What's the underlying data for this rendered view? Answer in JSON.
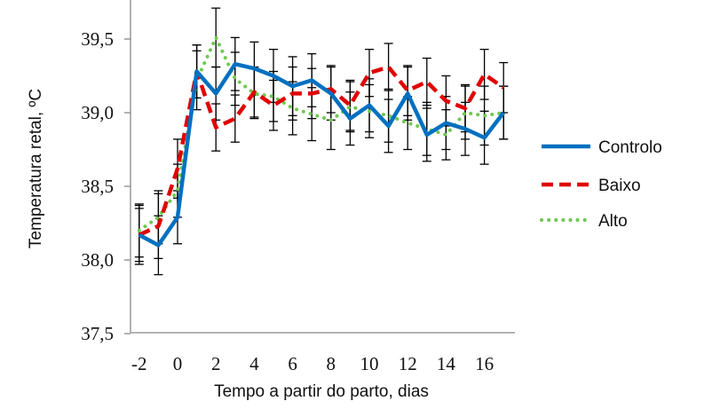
{
  "chart_data": {
    "type": "line",
    "title": "",
    "xlabel": "Tempo a partir do parto, dias",
    "ylabel": "Temperatura retal, ºC",
    "xlim": [
      -2.7,
      17.6
    ],
    "ylim": [
      37.5,
      39.75
    ],
    "x_ticks": [
      -2,
      0,
      2,
      4,
      6,
      8,
      10,
      12,
      14,
      16
    ],
    "y_ticks": [
      37.5,
      38.0,
      38.5,
      39.0,
      39.5
    ],
    "y_tick_labels": [
      "37,5",
      "38,0",
      "38,5",
      "39,0",
      "39,5"
    ],
    "grid": false,
    "legend": "right",
    "x": [
      -2,
      -1,
      0,
      1,
      2,
      3,
      4,
      5,
      6,
      7,
      8,
      9,
      10,
      11,
      12,
      13,
      14,
      15,
      16,
      17
    ],
    "series": [
      {
        "name": "Controlo",
        "color": "#0070C0",
        "style": "solid",
        "values": [
          38.17,
          38.1,
          38.29,
          39.28,
          39.13,
          39.33,
          39.3,
          39.25,
          39.18,
          39.22,
          39.13,
          38.96,
          39.05,
          38.91,
          39.13,
          38.85,
          38.93,
          38.89,
          38.83,
          39.0
        ],
        "error": [
          0.18,
          0.2,
          0.18,
          0.18,
          0.18,
          0.18,
          0.18,
          0.18,
          0.2,
          0.18,
          0.18,
          0.18,
          0.18,
          0.18,
          0.18,
          0.18,
          0.18,
          0.18,
          0.18,
          0.18
        ]
      },
      {
        "name": "Baixo",
        "color": "#E00000",
        "style": "dashed",
        "values": [
          38.17,
          38.23,
          38.62,
          39.28,
          38.9,
          38.96,
          39.14,
          39.05,
          39.13,
          39.13,
          39.16,
          39.05,
          39.27,
          39.31,
          39.15,
          39.21,
          39.08,
          39.03,
          39.26,
          39.17
        ],
        "error": [
          0.2,
          0.22,
          0.2,
          0.18,
          0.16,
          0.16,
          0.17,
          0.17,
          0.18,
          0.17,
          0.16,
          0.17,
          0.16,
          0.16,
          0.17,
          0.16,
          0.17,
          0.16,
          0.17,
          0.17
        ]
      },
      {
        "name": "Alto",
        "color": "#70C850",
        "style": "dotted",
        "values": [
          38.2,
          38.29,
          38.47,
          39.22,
          39.51,
          39.23,
          39.13,
          39.11,
          39.03,
          38.99,
          38.95,
          39.04,
          39.01,
          38.98,
          38.93,
          38.89,
          38.85,
          39.0,
          38.98,
          39.0
        ],
        "error": [
          0.18,
          0.18,
          0.18,
          0.2,
          0.2,
          0.18,
          0.17,
          0.17,
          0.18,
          0.18,
          0.2,
          0.17,
          0.18,
          0.18,
          0.18,
          0.18,
          0.17,
          0.18,
          0.2,
          0.18
        ]
      }
    ]
  }
}
